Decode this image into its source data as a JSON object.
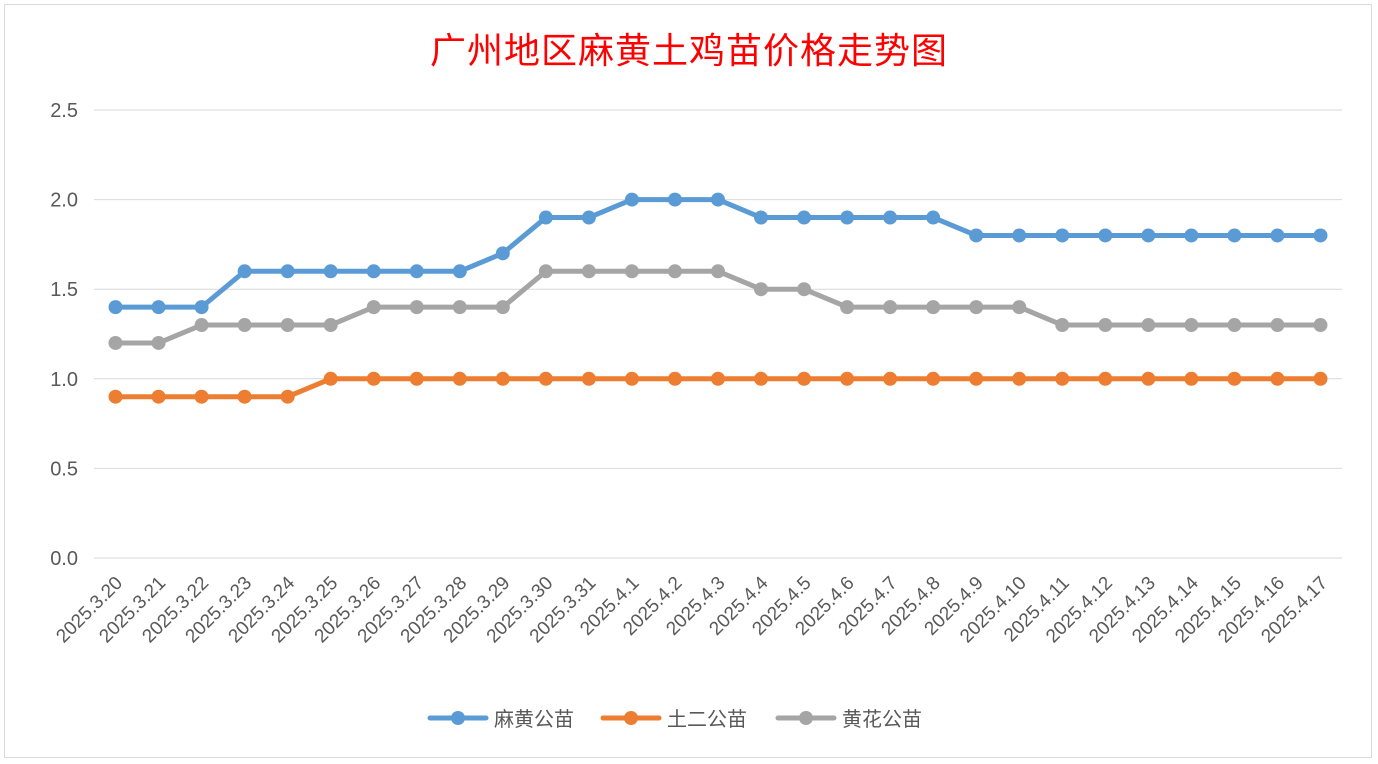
{
  "chart_data": {
    "type": "line",
    "title": "广州地区麻黄土鸡苗价格走势图",
    "xlabel": "",
    "ylabel": "",
    "ylim": [
      0,
      2.5
    ],
    "yticks": [
      "0.0",
      "0.5",
      "1.0",
      "1.5",
      "2.0",
      "2.5"
    ],
    "grid": true,
    "legend_position": "bottom",
    "categories": [
      "2025.3.20",
      "2025.3.21",
      "2025.3.22",
      "2025.3.23",
      "2025.3.24",
      "2025.3.25",
      "2025.3.26",
      "2025.3.27",
      "2025.3.28",
      "2025.3.29",
      "2025.3.30",
      "2025.3.31",
      "2025.4.1",
      "2025.4.2",
      "2025.4.3",
      "2025.4.4",
      "2025.4.5",
      "2025.4.6",
      "2025.4.7",
      "2025.4.8",
      "2025.4.9",
      "2025.4.10",
      "2025.4.11",
      "2025.4.12",
      "2025.4.13",
      "2025.4.14",
      "2025.4.15",
      "2025.4.16",
      "2025.4.17"
    ],
    "series": [
      {
        "name": "麻黄公苗",
        "color": "#5b9bd5",
        "values": [
          1.4,
          1.4,
          1.4,
          1.6,
          1.6,
          1.6,
          1.6,
          1.6,
          1.6,
          1.7,
          1.9,
          1.9,
          2.0,
          2.0,
          2.0,
          1.9,
          1.9,
          1.9,
          1.9,
          1.9,
          1.8,
          1.8,
          1.8,
          1.8,
          1.8,
          1.8,
          1.8,
          1.8,
          1.8
        ]
      },
      {
        "name": "土二公苗",
        "color": "#ed7d31",
        "values": [
          0.9,
          0.9,
          0.9,
          0.9,
          0.9,
          1.0,
          1.0,
          1.0,
          1.0,
          1.0,
          1.0,
          1.0,
          1.0,
          1.0,
          1.0,
          1.0,
          1.0,
          1.0,
          1.0,
          1.0,
          1.0,
          1.0,
          1.0,
          1.0,
          1.0,
          1.0,
          1.0,
          1.0,
          1.0
        ]
      },
      {
        "name": "黄花公苗",
        "color": "#a5a5a5",
        "values": [
          1.2,
          1.2,
          1.3,
          1.3,
          1.3,
          1.3,
          1.4,
          1.4,
          1.4,
          1.4,
          1.6,
          1.6,
          1.6,
          1.6,
          1.6,
          1.5,
          1.5,
          1.4,
          1.4,
          1.4,
          1.4,
          1.4,
          1.3,
          1.3,
          1.3,
          1.3,
          1.3,
          1.3,
          1.3
        ]
      }
    ]
  }
}
